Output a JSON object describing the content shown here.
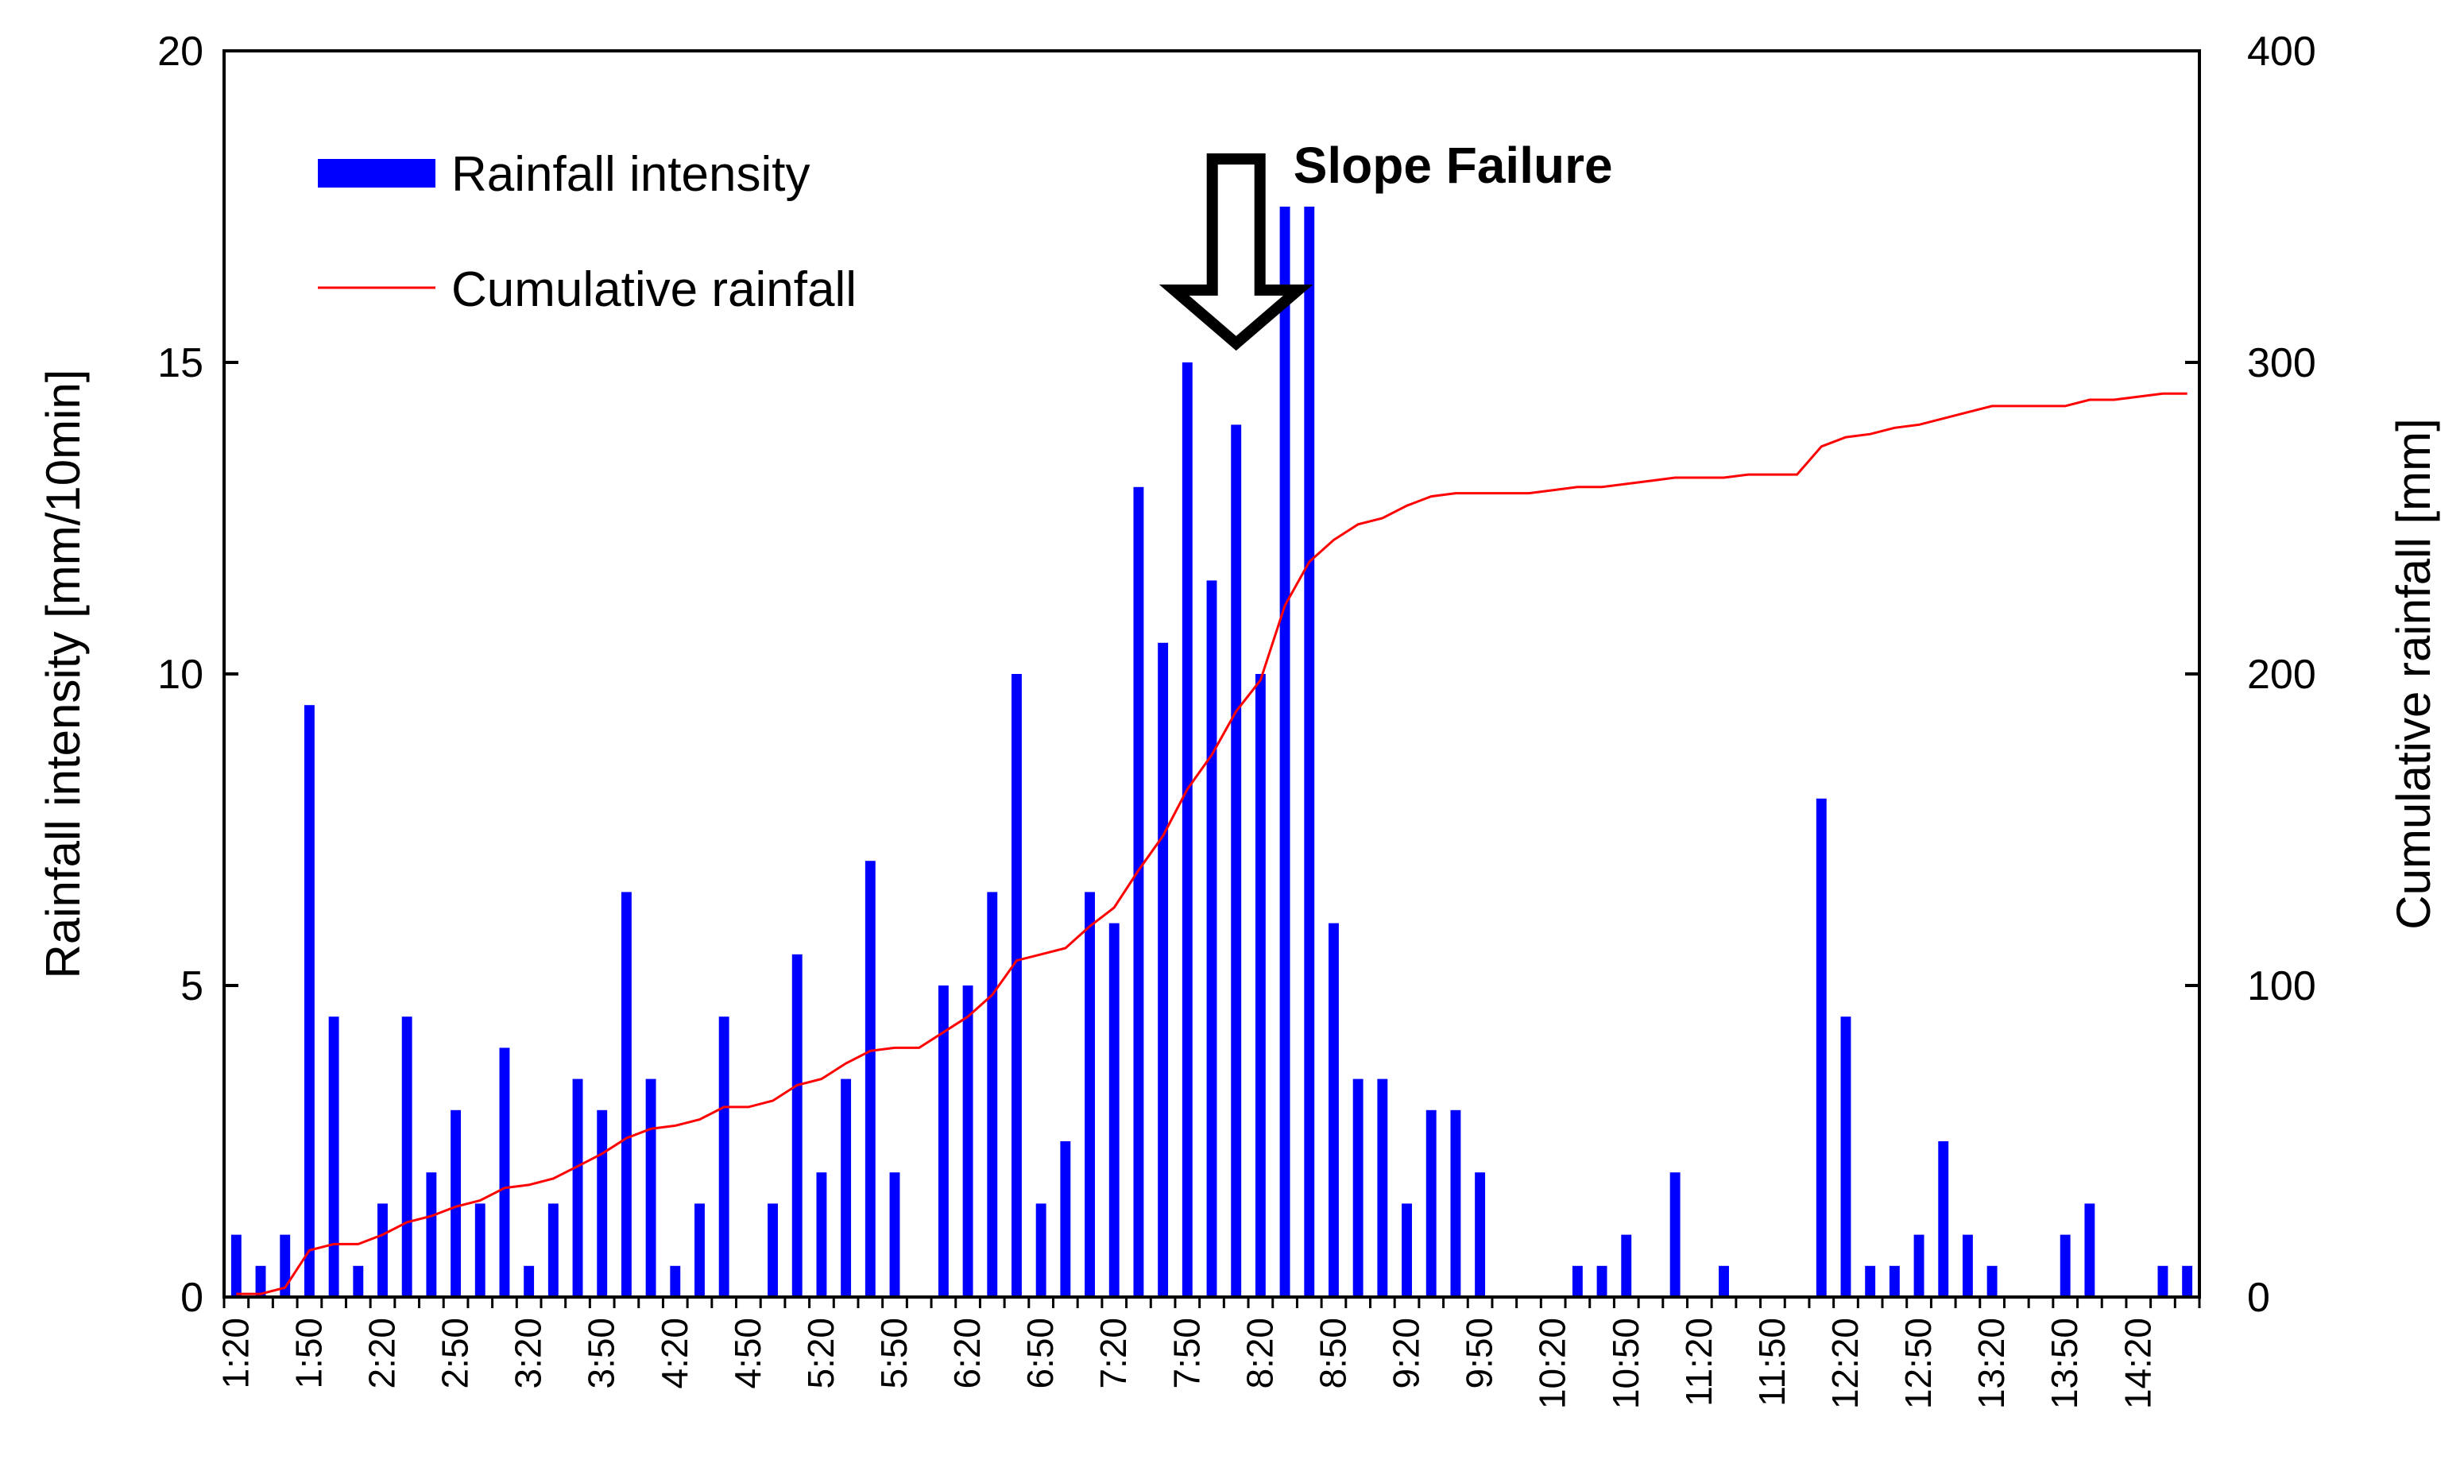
{
  "chart_data": {
    "type": "bar+line",
    "title": "",
    "x": [
      "1:20",
      "1:30",
      "1:40",
      "1:50",
      "2:00",
      "2:10",
      "2:20",
      "2:30",
      "2:40",
      "2:50",
      "3:00",
      "3:10",
      "3:20",
      "3:30",
      "3:40",
      "3:50",
      "4:00",
      "4:10",
      "4:20",
      "4:30",
      "4:40",
      "4:50",
      "5:00",
      "5:10",
      "5:20",
      "5:30",
      "5:40",
      "5:50",
      "6:00",
      "6:10",
      "6:20",
      "6:30",
      "6:40",
      "6:50",
      "7:00",
      "7:10",
      "7:20",
      "7:30",
      "7:40",
      "7:50",
      "8:00",
      "8:10",
      "8:20",
      "8:30",
      "8:40",
      "8:50",
      "9:00",
      "9:10",
      "9:20",
      "9:30",
      "9:40",
      "9:50",
      "10:00",
      "10:10",
      "10:20",
      "10:30",
      "10:40",
      "10:50",
      "11:00",
      "11:10",
      "11:20",
      "11:30",
      "11:40",
      "11:50",
      "12:00",
      "12:10",
      "12:20",
      "12:30",
      "12:40",
      "12:50",
      "13:00",
      "13:10",
      "13:20",
      "13:30",
      "13:40",
      "13:50",
      "14:00",
      "14:10",
      "14:20",
      "14:30",
      "14:40"
    ],
    "xtick_labels": [
      "1:20",
      "1:50",
      "2:20",
      "2:50",
      "3:20",
      "3:50",
      "4:20",
      "4:50",
      "5:20",
      "5:50",
      "6:20",
      "6:50",
      "7:20",
      "7:50",
      "8:20",
      "8:50",
      "9:20",
      "9:50",
      "10:20",
      "10:50",
      "11:20",
      "11:50",
      "12:20",
      "12:50",
      "13:20",
      "13:50",
      "14:20"
    ],
    "series": [
      {
        "name": "Rainfall intensity",
        "type": "bar",
        "axis": "left",
        "color": "#0000ff",
        "values": [
          1,
          0.5,
          1,
          9.5,
          4.5,
          0.5,
          1.5,
          4.5,
          2,
          3,
          1.5,
          4,
          0.5,
          1.5,
          3.5,
          3,
          6.5,
          3.5,
          0.5,
          1.5,
          4.5,
          0,
          1.5,
          5.5,
          2,
          3.5,
          7,
          2,
          0,
          5,
          5,
          6.5,
          10,
          1.5,
          2.5,
          6.5,
          6,
          13,
          10.5,
          15,
          11.5,
          14,
          10,
          17.5,
          17.5,
          6,
          3.5,
          3.5,
          1.5,
          3,
          3,
          2,
          0,
          0,
          0,
          0.5,
          0.5,
          1,
          0,
          2,
          0,
          0.5,
          0,
          0,
          0,
          8,
          4.5,
          0.5,
          0.5,
          1,
          2.5,
          1,
          0.5,
          0,
          0,
          1,
          1.5,
          0,
          0,
          0.5,
          0.5
        ]
      },
      {
        "name": "Cumulative rainfall",
        "type": "line",
        "axis": "right",
        "color": "#ff0000",
        "values": [
          1,
          1,
          3,
          15,
          17,
          17,
          20,
          24,
          26,
          29,
          31,
          35,
          36,
          38,
          42,
          46,
          51,
          54,
          55,
          57,
          61,
          61,
          63,
          68,
          70,
          75,
          79,
          80,
          80,
          85,
          90,
          97,
          108,
          110,
          112,
          119,
          125,
          137,
          148,
          163,
          174,
          188,
          198,
          222,
          236,
          243,
          248,
          250,
          254,
          257,
          258,
          258,
          258,
          258,
          259,
          260,
          260,
          261,
          262,
          263,
          263,
          263,
          264,
          264,
          264,
          273,
          276,
          277,
          279,
          280,
          282,
          284,
          286,
          286,
          286,
          286,
          288,
          288,
          289,
          290,
          290
        ]
      }
    ],
    "ylabel": "Rainfall intensity [mm/10min]",
    "y2label": "Cumulative rainfall [mm]",
    "ylim": [
      0,
      20
    ],
    "y2lim": [
      0,
      400
    ],
    "yticks": [
      0,
      5,
      10,
      15,
      20
    ],
    "y2ticks": [
      0,
      100,
      200,
      300,
      400
    ],
    "grid": false,
    "legend": {
      "position": "top-left",
      "entries": [
        "Rainfall intensity",
        "Cumulative rainfall"
      ]
    },
    "annotations": [
      {
        "text": "Slope  Failure",
        "at_x": "8:10",
        "symbol": "down-arrow"
      }
    ]
  }
}
